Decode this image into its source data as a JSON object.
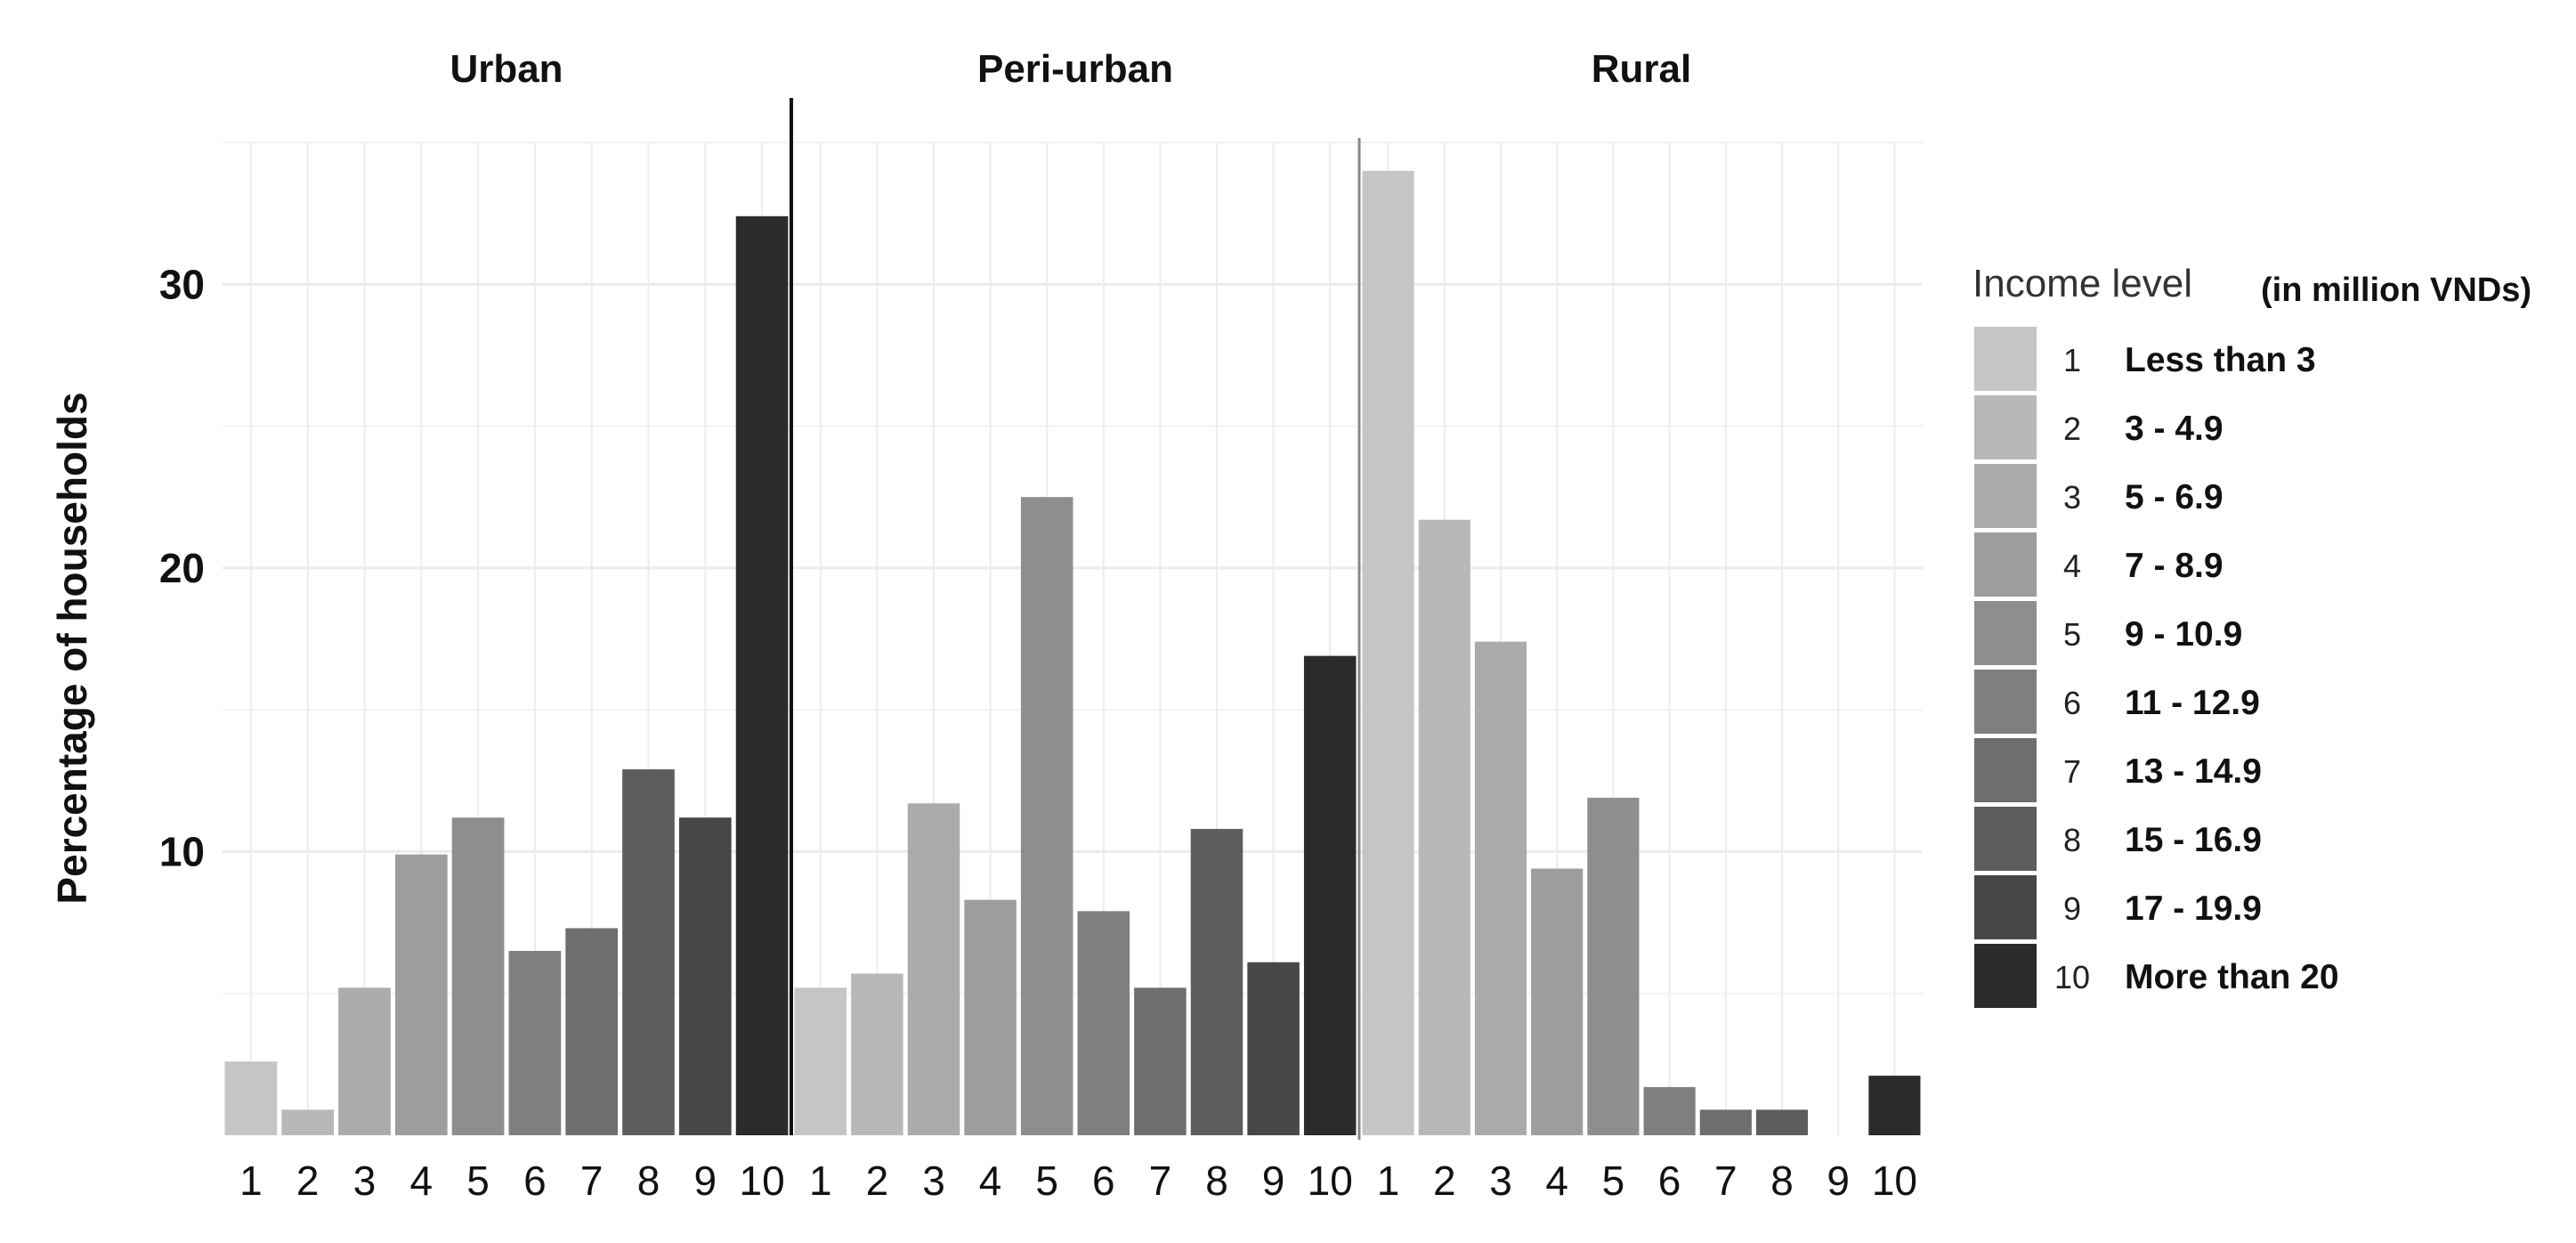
{
  "chart_data": {
    "type": "bar",
    "ylabel": "Percentage of households",
    "xlabel": "",
    "ylim": [
      0,
      35
    ],
    "y_ticks": [
      "10",
      "20",
      "30"
    ],
    "grid": true,
    "categories": [
      "1",
      "2",
      "3",
      "4",
      "5",
      "6",
      "7",
      "8",
      "9",
      "10"
    ],
    "panels": [
      {
        "name": "Urban",
        "values": [
          2.6,
          0.9,
          5.2,
          9.9,
          11.2,
          6.5,
          7.3,
          12.9,
          11.2,
          32.4
        ]
      },
      {
        "name": "Peri-urban",
        "values": [
          5.2,
          5.7,
          11.7,
          8.3,
          22.5,
          7.9,
          5.2,
          10.8,
          6.1,
          16.9
        ]
      },
      {
        "name": "Rural",
        "values": [
          34.0,
          21.7,
          17.4,
          9.4,
          11.9,
          1.7,
          0.9,
          0.9,
          0.0,
          2.1
        ]
      }
    ],
    "legend": {
      "title": "Income level",
      "subtitle": "(in million VNDs)",
      "placement": "right",
      "items": [
        {
          "key": "1",
          "label": "Less than 3"
        },
        {
          "key": "2",
          "label": "3 - 4.9"
        },
        {
          "key": "3",
          "label": "5 - 6.9"
        },
        {
          "key": "4",
          "label": "7 - 8.9"
        },
        {
          "key": "5",
          "label": "9 - 10.9"
        },
        {
          "key": "6",
          "label": "11 - 12.9"
        },
        {
          "key": "7",
          "label": "13 - 14.9"
        },
        {
          "key": "8",
          "label": "15 - 16.9"
        },
        {
          "key": "9",
          "label": "17 - 19.9"
        },
        {
          "key": "10",
          "label": "More than 20"
        }
      ]
    },
    "colors": [
      "#c5c5c5",
      "#b8b8b8",
      "#ababab",
      "#9d9d9d",
      "#8e8e8e",
      "#7f7f7f",
      "#6e6e6e",
      "#5d5d5d",
      "#474747",
      "#2b2b2b"
    ]
  }
}
